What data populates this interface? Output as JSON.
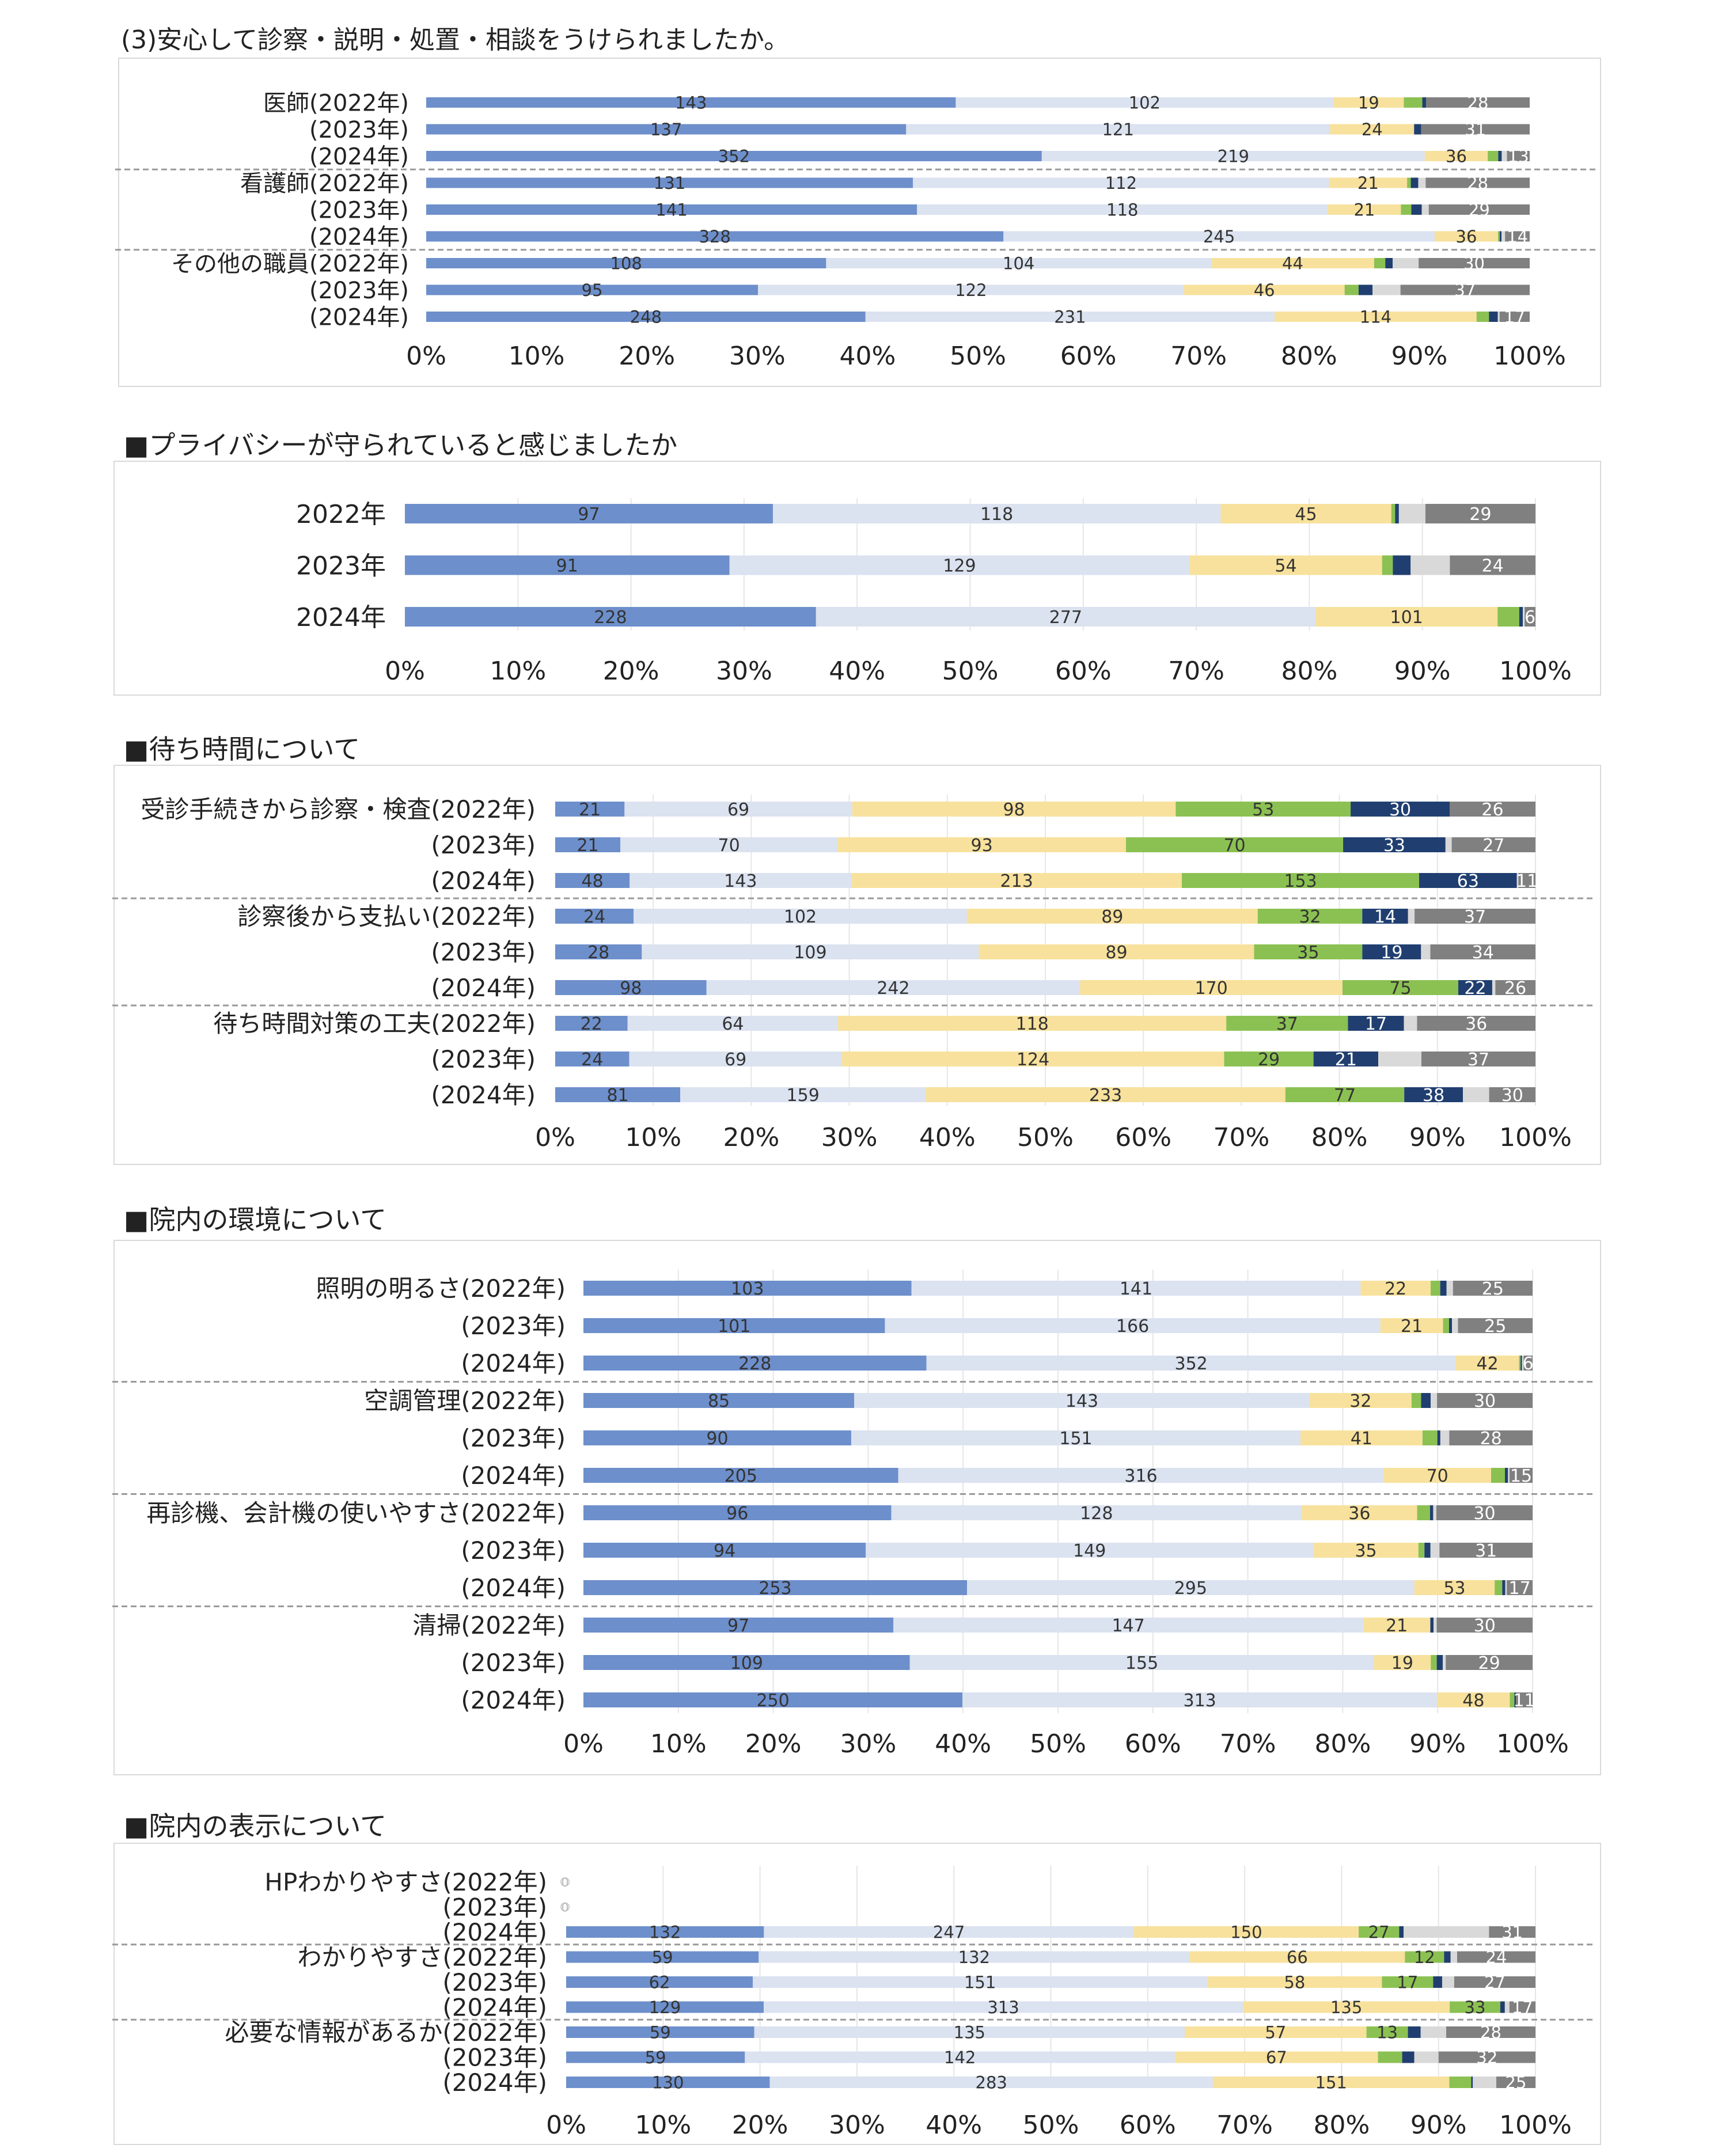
{
  "colors": {
    "c1": "#6d8fcb",
    "c2": "#dbe2f0",
    "c3": "#f7e19c",
    "c4": "#8bc152",
    "c5": "#203f70",
    "c6": "#d9d9d9",
    "c7": "#808080"
  },
  "x_ticks": [
    "0%",
    "10%",
    "20%",
    "30%",
    "40%",
    "50%",
    "60%",
    "70%",
    "80%",
    "90%",
    "100%"
  ],
  "sections": [
    {
      "title": "(3)安心して診察・説明・処置・相談をうけられましたか。",
      "chart_data": {
        "type": "bar",
        "stacked": "percent",
        "orientation": "horizontal",
        "grid": false,
        "categories": [
          "医師(2022年)",
          "(2023年)",
          "(2024年)",
          "看護師(2022年)",
          "(2023年)",
          "(2024年)",
          "その他の職員(2022年)",
          "(2023年)",
          "(2024年)"
        ],
        "group_breaks": [
          3,
          6
        ],
        "series": [
          {
            "values": [
              143,
              137,
              352,
              131,
              141,
              328,
              108,
              95,
              248
            ]
          },
          {
            "values": [
              102,
              121,
              219,
              112,
              118,
              245,
              104,
              122,
              231
            ]
          },
          {
            "values": [
              19,
              24,
              36,
              21,
              21,
              36,
              44,
              46,
              114
            ]
          },
          {
            "values": [
              5,
              0,
              6,
              1,
              3,
              1,
              3,
              4,
              7
            ]
          },
          {
            "values": [
              1,
              2,
              2,
              2,
              3,
              1,
              2,
              4,
              5
            ]
          },
          {
            "values": [
              0,
              0,
              3,
              2,
              2,
              2,
              7,
              8,
              1
            ]
          },
          {
            "values": [
              28,
              31,
              13,
              28,
              29,
              14,
              30,
              37,
              17
            ]
          }
        ]
      }
    },
    {
      "title": "■プライバシーが守られていると感じましたか",
      "chart_data": {
        "type": "bar",
        "stacked": "percent",
        "orientation": "horizontal",
        "grid": true,
        "categories": [
          "2022年",
          "2023年",
          "2024年"
        ],
        "group_breaks": [],
        "series": [
          {
            "values": [
              97,
              91,
              228
            ]
          },
          {
            "values": [
              118,
              129,
              277
            ]
          },
          {
            "values": [
              45,
              54,
              101
            ]
          },
          {
            "values": [
              1,
              3,
              12
            ]
          },
          {
            "values": [
              1,
              5,
              2
            ]
          },
          {
            "values": [
              7,
              11,
              1
            ]
          },
          {
            "values": [
              29,
              24,
              6
            ]
          }
        ]
      }
    },
    {
      "title": "■待ち時間について",
      "chart_data": {
        "type": "bar",
        "stacked": "percent",
        "orientation": "horizontal",
        "grid": true,
        "categories": [
          "受診手続きから診察・検査(2022年)",
          "(2023年)",
          "(2024年)",
          "診察後から支払い(2022年)",
          "(2023年)",
          "(2024年)",
          "待ち時間対策の工夫(2022年)",
          "(2023年)",
          "(2024年)"
        ],
        "group_breaks": [
          3,
          6
        ],
        "series": [
          {
            "values": [
              21,
              21,
              48,
              24,
              28,
              98,
              22,
              24,
              81
            ]
          },
          {
            "values": [
              69,
              70,
              143,
              102,
              109,
              242,
              64,
              69,
              159
            ]
          },
          {
            "values": [
              98,
              93,
              213,
              89,
              89,
              170,
              118,
              124,
              233
            ]
          },
          {
            "values": [
              53,
              70,
              153,
              32,
              35,
              75,
              37,
              29,
              77
            ]
          },
          {
            "values": [
              30,
              33,
              63,
              14,
              19,
              22,
              17,
              21,
              38
            ]
          },
          {
            "values": [
              0,
              2,
              1,
              2,
              3,
              2,
              4,
              14,
              17
            ]
          },
          {
            "values": [
              26,
              27,
              11,
              37,
              34,
              26,
              36,
              37,
              30
            ]
          }
        ]
      }
    },
    {
      "title": "■院内の環境について",
      "chart_data": {
        "type": "bar",
        "stacked": "percent",
        "orientation": "horizontal",
        "grid": true,
        "categories": [
          "照明の明るさ(2022年)",
          "(2023年)",
          "(2024年)",
          "空調管理(2022年)",
          "(2023年)",
          "(2024年)",
          "再診機、会計機の使いやすさ(2022年)",
          "(2023年)",
          "(2024年)",
          "清掃(2022年)",
          "(2023年)",
          "(2024年)"
        ],
        "group_breaks": [
          3,
          6,
          9
        ],
        "series": [
          {
            "values": [
              103,
              101,
              228,
              85,
              90,
              205,
              96,
              94,
              253,
              97,
              109,
              250
            ]
          },
          {
            "values": [
              141,
              166,
              352,
              143,
              151,
              316,
              128,
              149,
              295,
              147,
              155,
              313
            ]
          },
          {
            "values": [
              22,
              21,
              42,
              32,
              41,
              70,
              36,
              35,
              53,
              21,
              19,
              48
            ]
          },
          {
            "values": [
              3,
              2,
              1,
              3,
              5,
              9,
              4,
              2,
              5,
              0,
              2,
              3
            ]
          },
          {
            "values": [
              2,
              1,
              1,
              3,
              1,
              2,
              1,
              2,
              2,
              1,
              2,
              1
            ]
          },
          {
            "values": [
              2,
              2,
              1,
              2,
              3,
              1,
              1,
              3,
              1,
              1,
              1,
              0
            ]
          },
          {
            "values": [
              25,
              25,
              6,
              30,
              28,
              15,
              30,
              31,
              17,
              30,
              29,
              11
            ]
          }
        ]
      }
    },
    {
      "title": "■院内の表示について",
      "chart_data": {
        "type": "bar",
        "stacked": "percent",
        "orientation": "horizontal",
        "grid": true,
        "categories": [
          "HPわかりやすさ(2022年)",
          "(2023年)",
          "(2024年)",
          "わかりやすさ(2022年)",
          "(2023年)",
          "(2024年)",
          "必要な情報があるか(2022年)",
          "(2023年)",
          "(2024年)"
        ],
        "group_breaks": [
          3,
          6
        ],
        "empty_rows_labels": [
          "0",
          "0"
        ],
        "series": [
          {
            "values": [
              0,
              0,
              132,
              59,
              62,
              129,
              59,
              59,
              130
            ]
          },
          {
            "values": [
              0,
              0,
              247,
              132,
              151,
              313,
              135,
              142,
              283
            ]
          },
          {
            "values": [
              0,
              0,
              150,
              66,
              58,
              135,
              57,
              67,
              151
            ]
          },
          {
            "values": [
              0,
              0,
              27,
              12,
              17,
              33,
              13,
              8,
              14
            ]
          },
          {
            "values": [
              0,
              0,
              3,
              2,
              3,
              3,
              4,
              4,
              1
            ]
          },
          {
            "values": [
              0,
              0,
              57,
              2,
              4,
              3,
              8,
              8,
              15
            ]
          },
          {
            "values": [
              0,
              0,
              31,
              24,
              27,
              17,
              28,
              32,
              25
            ]
          }
        ]
      }
    }
  ]
}
